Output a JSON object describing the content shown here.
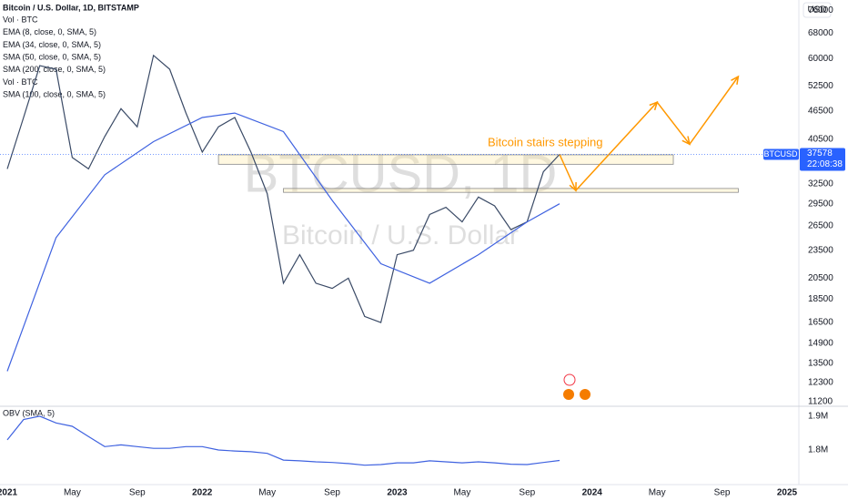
{
  "chart_data": [
    {
      "type": "line",
      "title": "Bitcoin / U.S. Dollar, 1D, BITSTAMP",
      "indicators": [
        "Vol · BTC",
        "EMA (8, close, 0, SMA, 5)",
        "EMA (34, close, 0, SMA, 5)",
        "SMA (50, close, 0, SMA, 5)",
        "SMA (200, close, 0, SMA, 5)",
        "Vol · BTC",
        "SMA (100, close, 0, SMA, 5)"
      ],
      "watermark": "BTCUSD, 1D",
      "watermark_subtitle": "Bitcoin / U.S. Dollar",
      "currency": "USD",
      "symbol": "BTCUSD",
      "last_price": 37578,
      "countdown": "22:08:38",
      "annotation": "Bitcoin stairs stepping",
      "log_scale": true,
      "xlim": [
        "2021-01",
        "2025-01"
      ],
      "ylim": [
        11000,
        80000
      ],
      "xticks": [
        {
          "value": "2021-01",
          "label": "2021"
        },
        {
          "value": "2021-05",
          "label": "May"
        },
        {
          "value": "2021-09",
          "label": "Sep"
        },
        {
          "value": "2022-01",
          "label": "2022"
        },
        {
          "value": "2022-05",
          "label": "May"
        },
        {
          "value": "2022-09",
          "label": "Sep"
        },
        {
          "value": "2023-01",
          "label": "2023"
        },
        {
          "value": "2023-05",
          "label": "May"
        },
        {
          "value": "2023-09",
          "label": "Sep"
        },
        {
          "value": "2024-01",
          "label": "2024"
        },
        {
          "value": "2024-05",
          "label": "May"
        },
        {
          "value": "2024-09",
          "label": "Sep"
        },
        {
          "value": "2025-01",
          "label": "2025"
        }
      ],
      "yticks": [
        76000,
        68000,
        60000,
        52500,
        46500,
        40500,
        32500,
        29500,
        26500,
        23500,
        20500,
        18500,
        16500,
        14900,
        13500,
        12300,
        11200
      ],
      "zones": [
        {
          "x": [
            "2022-02",
            "2024-06"
          ],
          "y": [
            35800,
            37500
          ]
        },
        {
          "x": [
            "2022-06",
            "2024-10"
          ],
          "y": [
            31200,
            31800
          ]
        }
      ],
      "series": [
        {
          "color": "#3a4a66",
          "x": [
            "2021-01",
            "2021-02",
            "2021-03",
            "2021-04",
            "2021-05",
            "2021-06",
            "2021-07",
            "2021-08",
            "2021-09",
            "2021-10",
            "2021-11",
            "2021-12",
            "2022-01",
            "2022-02",
            "2022-03",
            "2022-04",
            "2022-05",
            "2022-06",
            "2022-07",
            "2022-08",
            "2022-09",
            "2022-10",
            "2022-11",
            "2022-12",
            "2023-01",
            "2023-02",
            "2023-03",
            "2023-04",
            "2023-05",
            "2023-06",
            "2023-07",
            "2023-08",
            "2023-09",
            "2023-10",
            "2023-11"
          ],
          "values": [
            35000,
            45000,
            58000,
            57000,
            37000,
            35000,
            41000,
            47000,
            43000,
            61000,
            57000,
            46000,
            38000,
            43000,
            45000,
            38000,
            31000,
            20000,
            23000,
            20000,
            19500,
            20500,
            17000,
            16500,
            23000,
            23500,
            28000,
            29000,
            27000,
            30500,
            29200,
            26000,
            27000,
            34500,
            37578
          ]
        },
        {
          "color": "#3f62e0",
          "x": [
            "2021-01",
            "2021-04",
            "2021-07",
            "2021-10",
            "2022-01",
            "2022-03",
            "2022-06",
            "2022-09",
            "2022-12",
            "2023-03",
            "2023-06",
            "2023-09",
            "2023-11"
          ],
          "values": [
            13000,
            25000,
            34000,
            40000,
            45000,
            46000,
            42000,
            30000,
            22000,
            20000,
            23000,
            27000,
            29500
          ]
        },
        {
          "color": "#ff9800",
          "dashed": false,
          "x": [
            "2023-11",
            "2023-12",
            "2024-05",
            "2024-07",
            "2024-10"
          ],
          "values": [
            37578,
            31500,
            48500,
            39500,
            55000
          ]
        }
      ]
    },
    {
      "type": "line",
      "title": "OBV (SMA, 5)",
      "xlim": [
        "2021-01",
        "2025-01"
      ],
      "ylim": [
        1703000,
        1924000
      ],
      "yticks": [
        {
          "value": 1900000,
          "label": "1.9M"
        },
        {
          "value": 1800000,
          "label": "1.8M"
        }
      ],
      "series": [
        {
          "color": "#3f62e0",
          "x": [
            "2021-01",
            "2021-02",
            "2021-03",
            "2021-04",
            "2021-05",
            "2021-06",
            "2021-07",
            "2021-08",
            "2021-09",
            "2021-10",
            "2021-11",
            "2021-12",
            "2022-01",
            "2022-02",
            "2022-03",
            "2022-04",
            "2022-05",
            "2022-06",
            "2022-07",
            "2022-08",
            "2022-09",
            "2022-10",
            "2022-11",
            "2022-12",
            "2023-01",
            "2023-02",
            "2023-03",
            "2023-04",
            "2023-05",
            "2023-06",
            "2023-07",
            "2023-08",
            "2023-09",
            "2023-10",
            "2023-11"
          ],
          "values": [
            1830000,
            1890000,
            1900000,
            1880000,
            1870000,
            1840000,
            1810000,
            1815000,
            1810000,
            1805000,
            1805000,
            1810000,
            1810000,
            1800000,
            1797000,
            1795000,
            1790000,
            1770000,
            1768000,
            1765000,
            1763000,
            1760000,
            1755000,
            1757000,
            1762000,
            1762000,
            1768000,
            1765000,
            1762000,
            1765000,
            1762000,
            1758000,
            1757000,
            1763000,
            1769000
          ]
        }
      ]
    }
  ]
}
